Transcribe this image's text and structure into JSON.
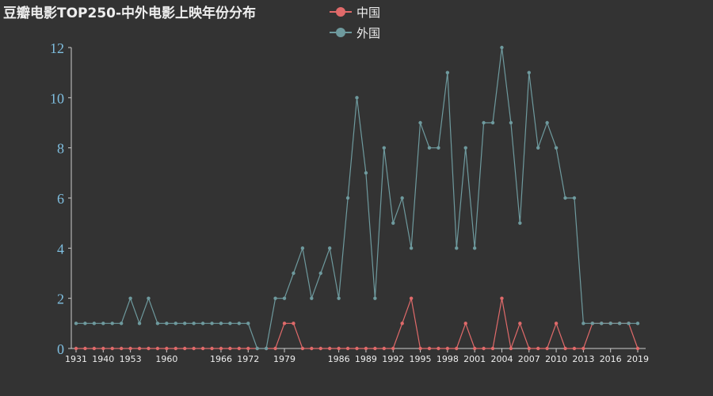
{
  "chart_data": {
    "type": "line",
    "title": "豆瓣电影TOP250-中外电影上映年份分布",
    "x": [
      1931,
      1936,
      1939,
      1940,
      1946,
      1950,
      1953,
      1954,
      1957,
      1959,
      1960,
      1961,
      1962,
      1963,
      1964,
      1965,
      1966,
      1968,
      1971,
      1972,
      1974,
      1975,
      1978,
      1979,
      1980,
      1982,
      1983,
      1984,
      1985,
      1986,
      1987,
      1988,
      1989,
      1990,
      1991,
      1992,
      1993,
      1994,
      1995,
      1996,
      1997,
      1998,
      1999,
      2000,
      2001,
      2002,
      2003,
      2004,
      2005,
      2006,
      2007,
      2008,
      2009,
      2010,
      2011,
      2012,
      2013,
      2014,
      2015,
      2016,
      2017,
      2018,
      2019
    ],
    "x_tick_labels": [
      "1931",
      "1940",
      "1953",
      "1960",
      "1966",
      "1972",
      "1979",
      "1986",
      "1989",
      "1992",
      "1995",
      "1998",
      "2001",
      "2004",
      "2007",
      "2010",
      "2013",
      "2016",
      "2019"
    ],
    "y_tick_labels": [
      "0",
      "2",
      "4",
      "6",
      "8",
      "10",
      "12"
    ],
    "ylim": [
      0,
      12
    ],
    "legend_position": "top",
    "series": [
      {
        "name": "中国",
        "color": "#e06a6a",
        "values": [
          0,
          0,
          0,
          0,
          0,
          0,
          0,
          0,
          0,
          0,
          0,
          0,
          0,
          0,
          0,
          0,
          0,
          0,
          0,
          0,
          0,
          0,
          0,
          1,
          1,
          0,
          0,
          0,
          0,
          0,
          0,
          0,
          0,
          0,
          0,
          0,
          1,
          2,
          0,
          0,
          0,
          0,
          0,
          1,
          0,
          0,
          0,
          2,
          0,
          1,
          0,
          0,
          0,
          1,
          0,
          0,
          0,
          1,
          1,
          1,
          1,
          1,
          0
        ]
      },
      {
        "name": "外国",
        "color": "#6e9a9e",
        "values": [
          1,
          1,
          1,
          1,
          1,
          1,
          2,
          1,
          2,
          1,
          1,
          1,
          1,
          1,
          1,
          1,
          1,
          1,
          1,
          1,
          0,
          0,
          2,
          2,
          3,
          4,
          2,
          3,
          4,
          2,
          6,
          10,
          7,
          2,
          8,
          5,
          6,
          4,
          9,
          8,
          8,
          11,
          4,
          8,
          4,
          9,
          9,
          12,
          9,
          5,
          11,
          8,
          9,
          8,
          6,
          6,
          1,
          1,
          1,
          1,
          1,
          1,
          1
        ]
      }
    ]
  }
}
